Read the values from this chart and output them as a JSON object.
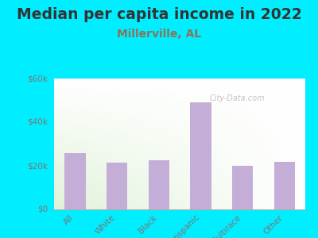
{
  "title": "Median per capita income in 2022",
  "subtitle": "Millerville, AL",
  "categories": [
    "All",
    "White",
    "Black",
    "Hispanic",
    "Multirace",
    "Other"
  ],
  "values": [
    26000,
    21500,
    22500,
    49000,
    20000,
    22000
  ],
  "bar_color": "#c4aed8",
  "title_fontsize": 13.5,
  "subtitle_fontsize": 10,
  "title_color": "#333333",
  "subtitle_color": "#8b7355",
  "tick_label_color": "#777777",
  "background_outer": "#00eeff",
  "ylim": [
    0,
    60000
  ],
  "yticks": [
    0,
    20000,
    40000,
    60000
  ],
  "ytick_labels": [
    "$0",
    "$20k",
    "$40k",
    "$60k"
  ],
  "watermark": "City-Data.com"
}
